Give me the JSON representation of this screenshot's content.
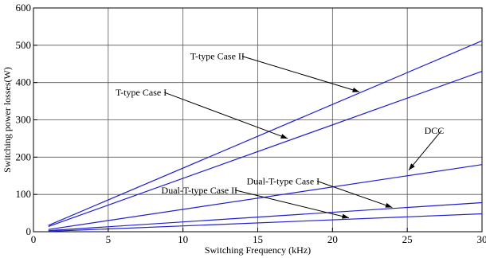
{
  "chart_data": {
    "type": "line",
    "title": "",
    "xlabel": "Switching Frequency (kHz)",
    "ylabel": "Switching power losses(W)",
    "xlim": [
      0,
      30
    ],
    "ylim": [
      0,
      600
    ],
    "xticks": [
      0,
      5,
      10,
      15,
      20,
      25,
      30
    ],
    "yticks": [
      0,
      100,
      200,
      300,
      400,
      500,
      600
    ],
    "grid": true,
    "legend": "none",
    "line_color": "#1f1fcf",
    "series": [
      {
        "x": [
          1,
          30
        ],
        "y": [
          17,
          512
        ]
      },
      {
        "x": [
          1,
          30
        ],
        "y": [
          14,
          430
        ]
      },
      {
        "x": [
          1,
          30
        ],
        "y": [
          6,
          180
        ]
      },
      {
        "x": [
          1,
          30
        ],
        "y": [
          3,
          78
        ]
      },
      {
        "x": [
          1,
          30
        ],
        "y": [
          1,
          48
        ]
      }
    ],
    "annotations": [
      {
        "text": "T-type Case II",
        "text_at": [
          12.3,
          462
        ],
        "arrow_to": [
          21.8,
          375
        ]
      },
      {
        "text": "T-type Case I",
        "text_at": [
          7.2,
          365
        ],
        "arrow_to": [
          17,
          250
        ]
      },
      {
        "text": "DCC",
        "text_at": [
          26.8,
          263
        ],
        "arrow_to": [
          25.1,
          165
        ]
      },
      {
        "text": "Dual-T-type Case I",
        "text_at": [
          16.7,
          127
        ],
        "arrow_to": [
          24,
          65
        ]
      },
      {
        "text": "Dual-T-type Case II",
        "text_at": [
          11.1,
          103
        ],
        "arrow_to": [
          21.1,
          37
        ]
      }
    ]
  }
}
